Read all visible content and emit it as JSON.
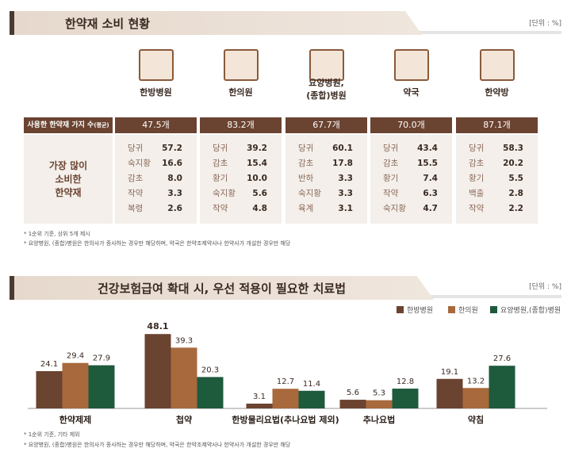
{
  "section1": {
    "title": "한약재 소비 현황",
    "unit": "[단위 : %]",
    "row_header": "사용한 한약재 가지 수",
    "row_header_suffix": "(평균)",
    "side_label": [
      "가장 많이",
      "소비한",
      "한약재"
    ],
    "columns": [
      {
        "name": "한방병원",
        "icon": "hospital-icon",
        "count": "47.5개",
        "items": [
          [
            "당귀",
            "57.2"
          ],
          [
            "숙지황",
            "16.6"
          ],
          [
            "감초",
            "8.0"
          ],
          [
            "작약",
            "3.3"
          ],
          [
            "복령",
            "2.6"
          ]
        ]
      },
      {
        "name": "한의원",
        "icon": "clinic-icon",
        "count": "83.2개",
        "items": [
          [
            "당귀",
            "39.2"
          ],
          [
            "감초",
            "15.4"
          ],
          [
            "황기",
            "10.0"
          ],
          [
            "숙지황",
            "5.6"
          ],
          [
            "작약",
            "4.8"
          ]
        ]
      },
      {
        "name": "요양병원,\n(종합)병원",
        "icon": "nursing-hospital-icon",
        "count": "67.7개",
        "items": [
          [
            "당귀",
            "60.1"
          ],
          [
            "감초",
            "17.8"
          ],
          [
            "반하",
            "3.3"
          ],
          [
            "숙지황",
            "3.3"
          ],
          [
            "육계",
            "3.1"
          ]
        ]
      },
      {
        "name": "약국",
        "icon": "pharmacy-icon",
        "count": "70.0개",
        "items": [
          [
            "당귀",
            "43.4"
          ],
          [
            "감초",
            "15.5"
          ],
          [
            "황기",
            "7.4"
          ],
          [
            "작약",
            "6.3"
          ],
          [
            "숙지황",
            "4.7"
          ]
        ]
      },
      {
        "name": "한약방",
        "icon": "herbal-shop-icon",
        "count": "87.1개",
        "items": [
          [
            "당귀",
            "58.3"
          ],
          [
            "감초",
            "20.2"
          ],
          [
            "황기",
            "5.5"
          ],
          [
            "백출",
            "2.8"
          ],
          [
            "작약",
            "2.2"
          ]
        ]
      }
    ],
    "notes": [
      "* 1순위 기준, 상위 5개 제시",
      "* 요양병원, (종합)병원은 한의사가 종사하는 경우만 해당하며, 약국은 한약조제약사나 한약사가 개설한 경우만 해당"
    ]
  },
  "chart_data": {
    "type": "bar",
    "title": "건강보험급여 확대 시, 우선 적용이 필요한 치료법",
    "unit": "[단위 : %]",
    "categories": [
      "한약제제",
      "첩약",
      "한방물리요법(추나요법 제외)",
      "추나요법",
      "약침"
    ],
    "series": [
      {
        "name": "한방병원",
        "color": "#6b4331",
        "values": [
          24.1,
          48.1,
          3.1,
          5.6,
          19.1
        ]
      },
      {
        "name": "한의원",
        "color": "#a8693d",
        "values": [
          29.4,
          39.3,
          12.7,
          5.3,
          13.2
        ]
      },
      {
        "name": "요양병원,(종합)병원",
        "color": "#1e5a3c",
        "values": [
          27.9,
          20.3,
          11.4,
          12.8,
          27.6
        ]
      }
    ],
    "legend": "top-right",
    "grid": false,
    "notes": [
      "* 1순위 기준, 기타 제외",
      "* 요양병원, (종합)병원은 한의사가 종사하는 경우만 해당하며, 약국은 한약조제약사나 한약사가 개설한 경우만 해당"
    ]
  }
}
